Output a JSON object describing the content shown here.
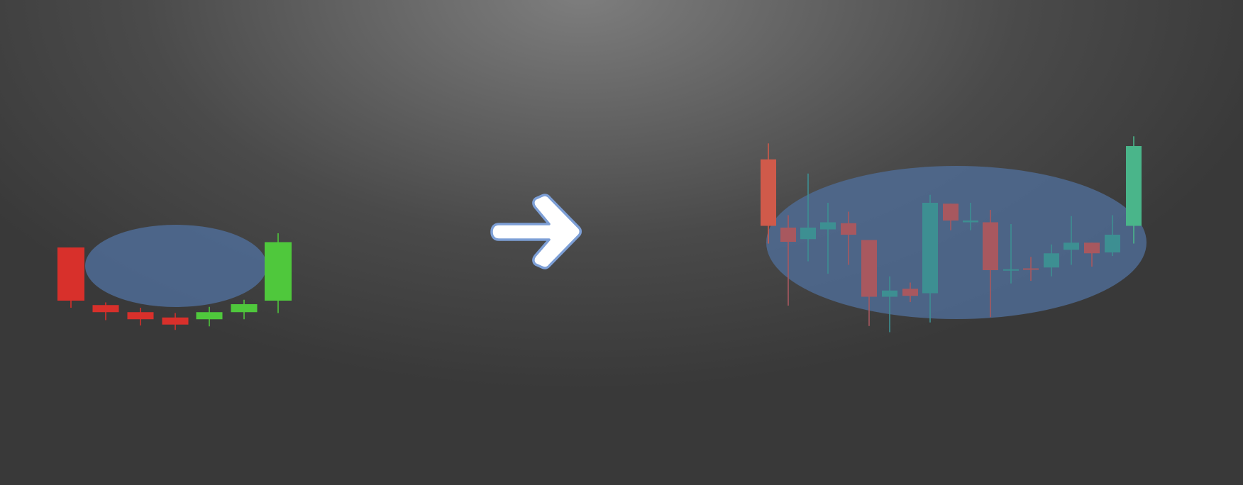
{
  "colors": {
    "left_bear": "#d8302b",
    "left_bull": "#4fc83c",
    "right_bear": "#d05a4a",
    "right_bull": "#4ab58a",
    "inner_bear": "#a8585f",
    "inner_bull": "#3d8f92",
    "ellipse_fill": "#4f6c96",
    "arrow_fill": "#ffffff",
    "arrow_stroke": "#7d9fd6"
  },
  "panels": [
    {
      "id": "left",
      "candles": [
        {
          "dir": "bear",
          "open": 10,
          "close": 4,
          "high": 10,
          "low": 3.2
        },
        {
          "dir": "bear",
          "open": 3.5,
          "close": 2.7,
          "high": 3.8,
          "low": 1.8
        },
        {
          "dir": "bear",
          "open": 2.7,
          "close": 1.9,
          "high": 3.2,
          "low": 1.2
        },
        {
          "dir": "bear",
          "open": 2.1,
          "close": 1.3,
          "high": 2.6,
          "low": 0.7
        },
        {
          "dir": "bull",
          "open": 1.9,
          "close": 2.7,
          "high": 3.3,
          "low": 1.1
        },
        {
          "dir": "bull",
          "open": 2.7,
          "close": 3.6,
          "high": 4.1,
          "low": 1.9
        },
        {
          "dir": "bull",
          "open": 4,
          "close": 10.6,
          "high": 11.6,
          "low": 2.6
        }
      ]
    },
    {
      "id": "right",
      "candles": [
        {
          "dir": "bear",
          "open": 20.5,
          "close": 13,
          "high": 22.3,
          "low": 11
        },
        {
          "dir": "bear",
          "open": 12.8,
          "close": 11.2,
          "high": 14.2,
          "low": 4
        },
        {
          "dir": "bull",
          "open": 11.5,
          "close": 12.8,
          "high": 18.9,
          "low": 9
        },
        {
          "dir": "bull",
          "open": 12.6,
          "close": 13.4,
          "high": 15.6,
          "low": 7.6
        },
        {
          "dir": "bear",
          "open": 13.3,
          "close": 12,
          "high": 14.6,
          "low": 8.6
        },
        {
          "dir": "bear",
          "open": 11.4,
          "close": 5,
          "high": 11.4,
          "low": 1.7
        },
        {
          "dir": "bull",
          "open": 5,
          "close": 5.7,
          "high": 7.3,
          "low": 1
        },
        {
          "dir": "bear",
          "open": 5.9,
          "close": 5.1,
          "high": 6.6,
          "low": 4.4
        },
        {
          "dir": "bull",
          "open": 5.4,
          "close": 15.6,
          "high": 16.5,
          "low": 2.1
        },
        {
          "dir": "bear",
          "open": 15.5,
          "close": 13.6,
          "high": 15.5,
          "low": 12.5
        },
        {
          "dir": "bull",
          "open": 13.4,
          "close": 13.6,
          "high": 15.6,
          "low": 12.5
        },
        {
          "dir": "bear",
          "open": 13.4,
          "close": 8,
          "high": 14.8,
          "low": 2.7
        },
        {
          "dir": "bull",
          "open": 8.05,
          "close": 8.1,
          "high": 13.2,
          "low": 6.5
        },
        {
          "dir": "bear",
          "open": 8.2,
          "close": 8.05,
          "high": 9.5,
          "low": 6.8
        },
        {
          "dir": "bull",
          "open": 8.3,
          "close": 9.9,
          "high": 10.9,
          "low": 7.3
        },
        {
          "dir": "bull",
          "open": 10.3,
          "close": 11.1,
          "high": 14.1,
          "low": 8.6
        },
        {
          "dir": "bear",
          "open": 11.1,
          "close": 9.9,
          "high": 11.1,
          "low": 8.4
        },
        {
          "dir": "bull",
          "open": 10,
          "close": 12,
          "high": 14.2,
          "low": 9.6
        },
        {
          "dir": "bull",
          "open": 13,
          "close": 22,
          "high": 23.1,
          "low": 11
        }
      ]
    }
  ]
}
